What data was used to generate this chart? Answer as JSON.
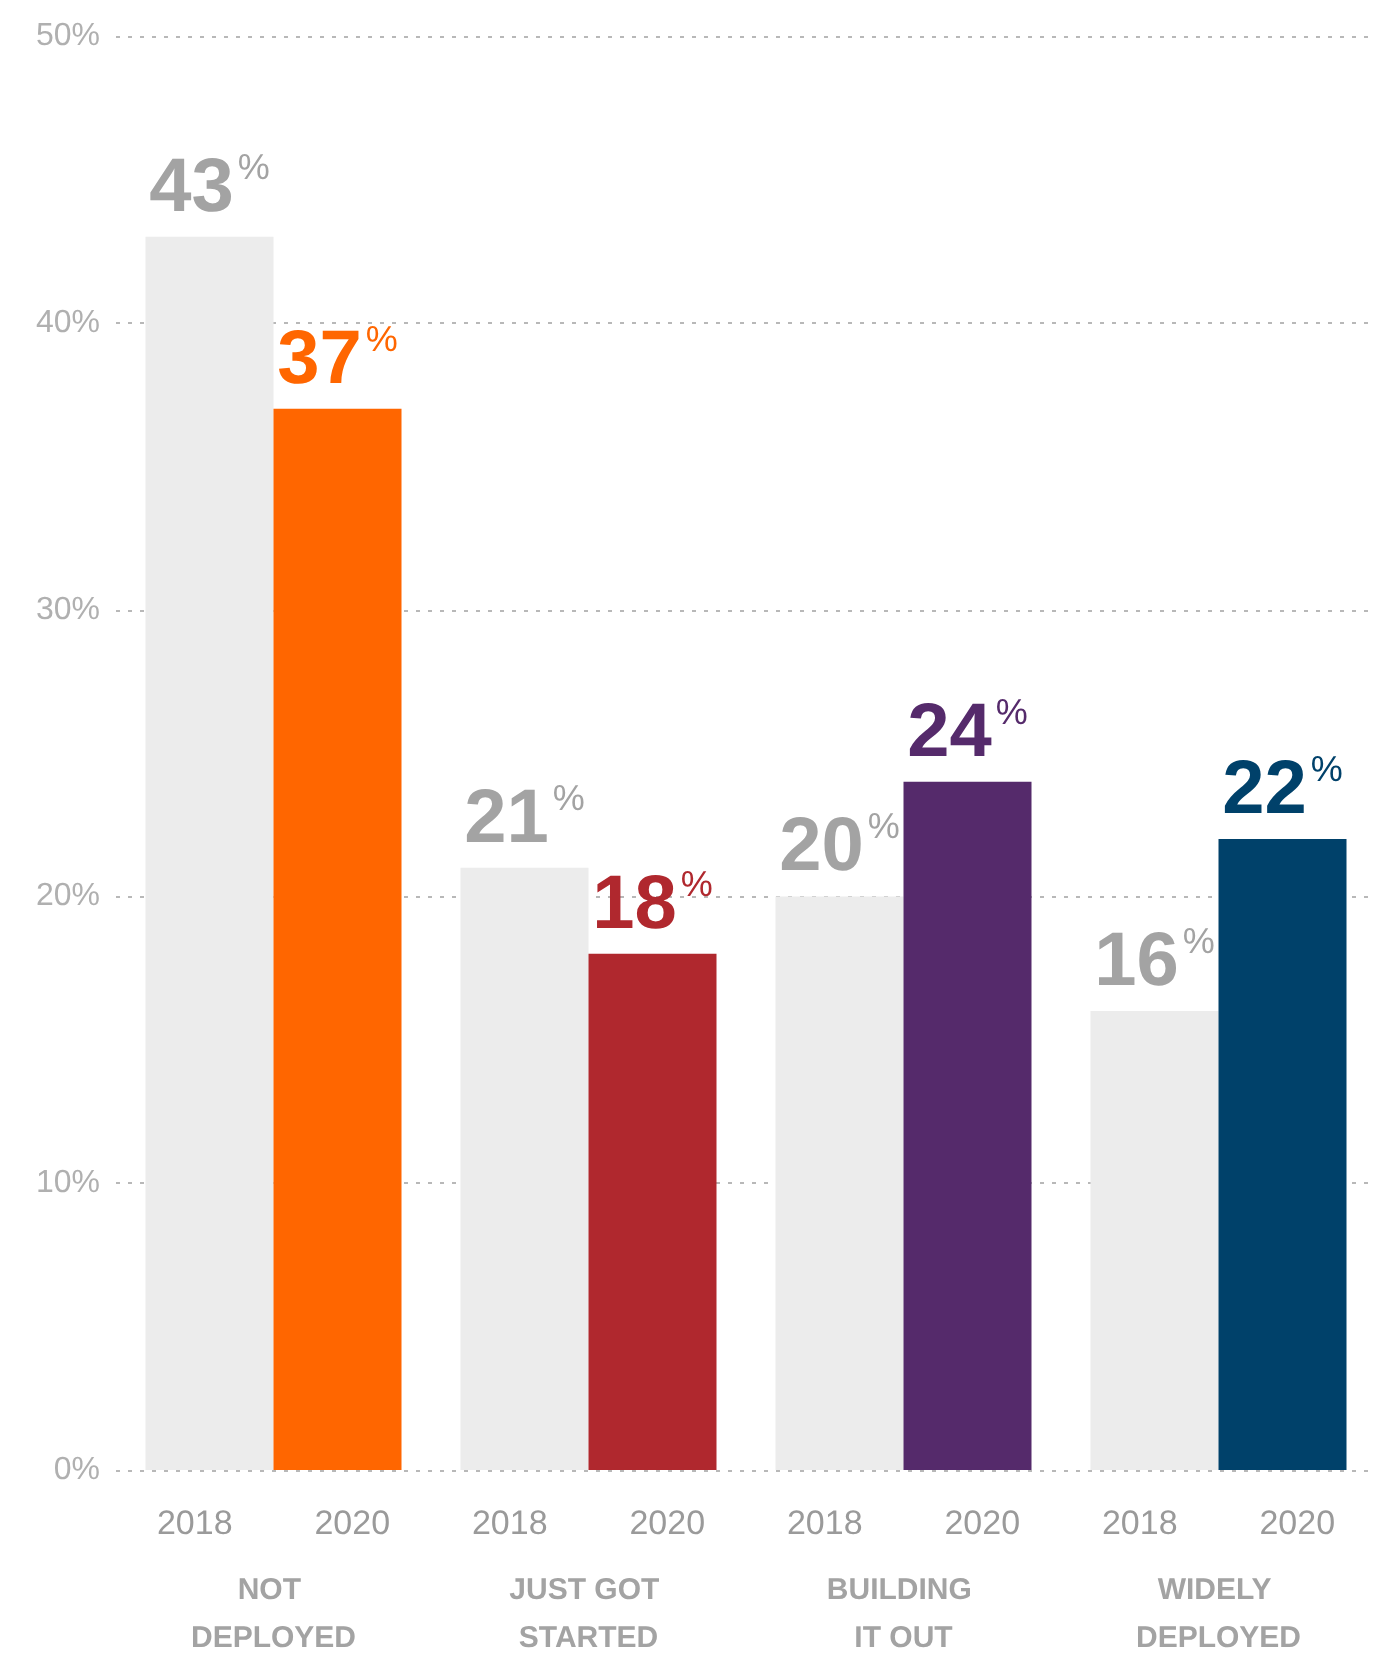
{
  "chart_data": {
    "type": "bar",
    "categories": [
      "NOT DEPLOYED",
      "JUST GOT STARTED",
      "BUILDING IT OUT",
      "WIDELY DEPLOYED"
    ],
    "series": [
      {
        "name": "2018",
        "color": "#ececec",
        "values": [
          43,
          21,
          20,
          16
        ],
        "value_labels": [
          "43%",
          "21%",
          "20%",
          "16%"
        ]
      },
      {
        "name": "2020",
        "colors": [
          "#ff6600",
          "#b0282e",
          "#552a6b",
          "#00416a"
        ],
        "values": [
          37,
          18,
          24,
          22
        ],
        "value_labels": [
          "37%",
          "18%",
          "24%",
          "22%"
        ]
      }
    ],
    "ylim": [
      0,
      50
    ],
    "yticks": [
      {
        "value": 0,
        "label": "0%"
      },
      {
        "value": 10,
        "label": "10%"
      },
      {
        "value": 20,
        "label": "20%"
      },
      {
        "value": 30,
        "label": "30%"
      },
      {
        "value": 40,
        "label": "40%"
      },
      {
        "value": 50,
        "label": "50%"
      }
    ],
    "grid": "y",
    "legend": false
  }
}
